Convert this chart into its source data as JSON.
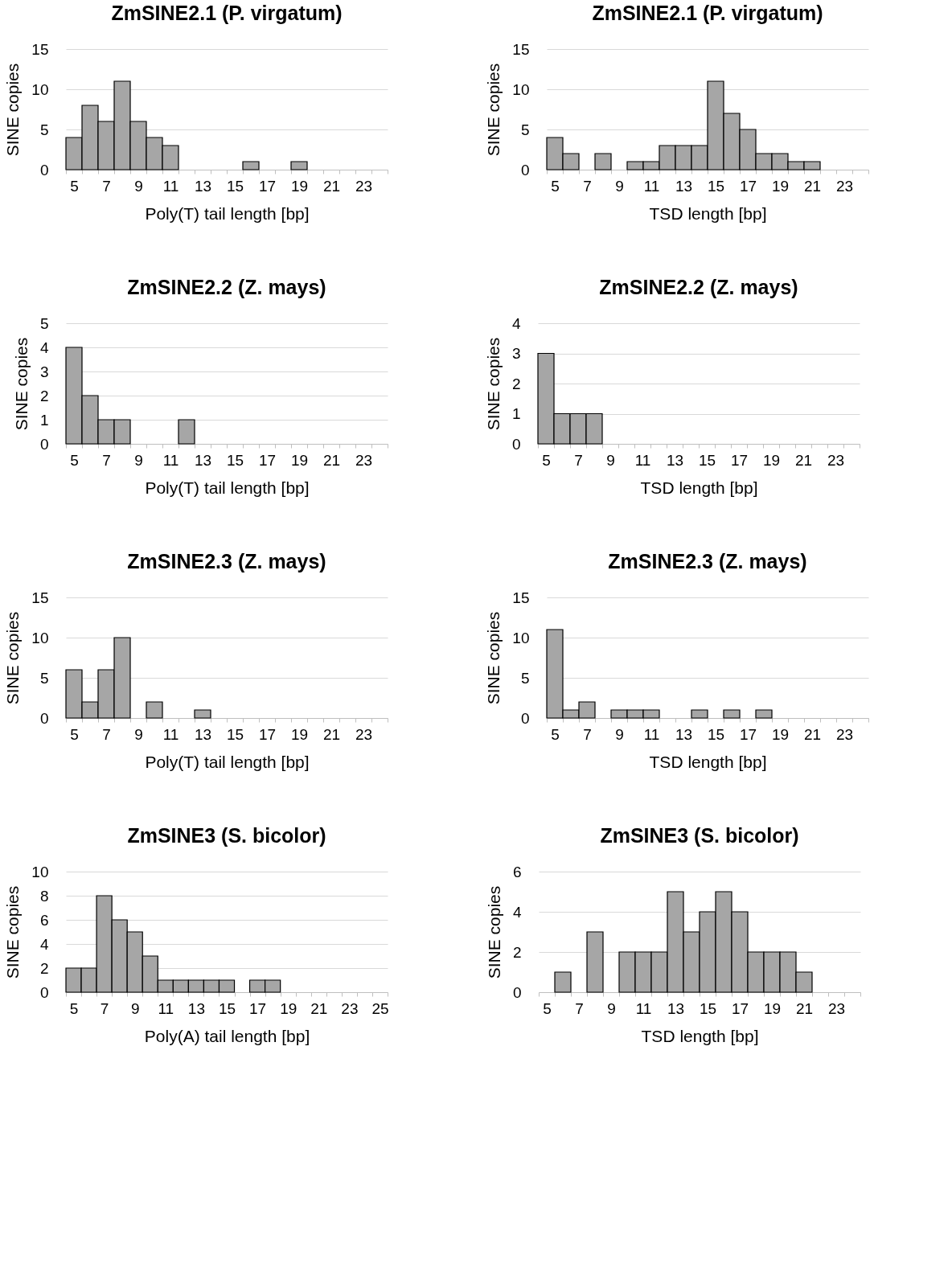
{
  "chart_data": [
    {
      "type": "bar",
      "title": "ZmSINE2.1 (P. virgatum)",
      "xlabel": "Poly(T) tail length [bp]",
      "ylabel": "SINE copies",
      "color": "#a6a6a6",
      "grid": "y",
      "ylim": [
        0,
        15
      ],
      "yticks": [
        0,
        5,
        10,
        15
      ],
      "categories": [
        "5",
        null,
        "7",
        null,
        "9",
        null,
        "11",
        null,
        "13",
        null,
        "15",
        null,
        "17",
        null,
        "19",
        null,
        "21",
        null,
        "23",
        null
      ],
      "values": [
        4,
        8,
        6,
        11,
        6,
        4,
        3,
        0,
        0,
        0,
        0,
        1,
        0,
        0,
        1,
        0,
        0,
        0,
        0,
        0
      ]
    },
    {
      "type": "bar",
      "title": "ZmSINE2.1 (P. virgatum)",
      "xlabel": "TSD length [bp]",
      "ylabel": "SINE copies",
      "color": "#a6a6a6",
      "grid": "y",
      "ylim": [
        0,
        15
      ],
      "yticks": [
        0,
        5,
        10,
        15
      ],
      "categories": [
        "5",
        null,
        "7",
        null,
        "9",
        null,
        "11",
        null,
        "13",
        null,
        "15",
        null,
        "17",
        null,
        "19",
        null,
        "21",
        null,
        "23",
        null
      ],
      "values": [
        4,
        2,
        0,
        2,
        0,
        1,
        1,
        3,
        3,
        3,
        11,
        7,
        5,
        2,
        2,
        1,
        1,
        0,
        0,
        0
      ]
    },
    {
      "type": "bar",
      "title": "ZmSINE2.2 (Z. mays)",
      "xlabel": "Poly(T) tail length [bp]",
      "ylabel": "SINE copies",
      "color": "#a6a6a6",
      "grid": "y",
      "ylim": [
        0,
        5
      ],
      "yticks": [
        0,
        1,
        2,
        3,
        4,
        5
      ],
      "categories": [
        "5",
        null,
        "7",
        null,
        "9",
        null,
        "11",
        null,
        "13",
        null,
        "15",
        null,
        "17",
        null,
        "19",
        null,
        "21",
        null,
        "23",
        null
      ],
      "values": [
        4,
        2,
        1,
        1,
        0,
        0,
        0,
        1,
        0,
        0,
        0,
        0,
        0,
        0,
        0,
        0,
        0,
        0,
        0,
        0
      ]
    },
    {
      "type": "bar",
      "title": "ZmSINE2.2 (Z. mays)",
      "xlabel": "TSD length [bp]",
      "ylabel": "SINE copies",
      "color": "#a6a6a6",
      "grid": "y",
      "ylim": [
        0,
        4
      ],
      "yticks": [
        0,
        1,
        2,
        3,
        4
      ],
      "categories": [
        "5",
        null,
        "7",
        null,
        "9",
        null,
        "11",
        null,
        "13",
        null,
        "15",
        null,
        "17",
        null,
        "19",
        null,
        "21",
        null,
        "23",
        null
      ],
      "values": [
        3,
        1,
        1,
        1,
        0,
        0,
        0,
        0,
        0,
        0,
        0,
        0,
        0,
        0,
        0,
        0,
        0,
        0,
        0,
        0
      ]
    },
    {
      "type": "bar",
      "title": "ZmSINE2.3 (Z. mays)",
      "xlabel": "Poly(T) tail length [bp]",
      "ylabel": "SINE copies",
      "color": "#a6a6a6",
      "grid": "y",
      "ylim": [
        0,
        15
      ],
      "yticks": [
        0,
        5,
        10,
        15
      ],
      "categories": [
        "5",
        null,
        "7",
        null,
        "9",
        null,
        "11",
        null,
        "13",
        null,
        "15",
        null,
        "17",
        null,
        "19",
        null,
        "21",
        null,
        "23",
        null
      ],
      "values": [
        6,
        2,
        6,
        10,
        0,
        2,
        0,
        0,
        1,
        0,
        0,
        0,
        0,
        0,
        0,
        0,
        0,
        0,
        0,
        0
      ]
    },
    {
      "type": "bar",
      "title": "ZmSINE2.3 (Z. mays)",
      "xlabel": "TSD length [bp]",
      "ylabel": "SINE copies",
      "color": "#a6a6a6",
      "grid": "y",
      "ylim": [
        0,
        15
      ],
      "yticks": [
        0,
        5,
        10,
        15
      ],
      "categories": [
        "5",
        null,
        "7",
        null,
        "9",
        null,
        "11",
        null,
        "13",
        null,
        "15",
        null,
        "17",
        null,
        "19",
        null,
        "21",
        null,
        "23",
        null
      ],
      "values": [
        11,
        1,
        2,
        0,
        1,
        1,
        1,
        0,
        0,
        1,
        0,
        1,
        0,
        1,
        0,
        0,
        0,
        0,
        0,
        0
      ]
    },
    {
      "type": "bar",
      "title": "ZmSINE3 (S. bicolor)",
      "xlabel": "Poly(A) tail length [bp]",
      "ylabel": "SINE copies",
      "color": "#a6a6a6",
      "grid": "y",
      "ylim": [
        0,
        10
      ],
      "yticks": [
        0,
        2,
        4,
        6,
        8,
        10
      ],
      "categories": [
        "5",
        null,
        "7",
        null,
        "9",
        null,
        "11",
        null,
        "13",
        null,
        "15",
        null,
        "17",
        null,
        "19",
        null,
        "21",
        null,
        "23",
        null,
        "25"
      ],
      "values": [
        2,
        2,
        8,
        6,
        5,
        3,
        1,
        1,
        1,
        1,
        1,
        0,
        1,
        1,
        0,
        0,
        0,
        0,
        0,
        0,
        0
      ]
    },
    {
      "type": "bar",
      "title": "ZmSINE3 (S. bicolor)",
      "xlabel": "TSD length [bp]",
      "ylabel": "SINE copies",
      "color": "#a6a6a6",
      "grid": "y",
      "ylim": [
        0,
        6
      ],
      "yticks": [
        0,
        2,
        4,
        6
      ],
      "categories": [
        "5",
        null,
        "7",
        null,
        "9",
        null,
        "11",
        null,
        "13",
        null,
        "15",
        null,
        "17",
        null,
        "19",
        null,
        "21",
        null,
        "23",
        null
      ],
      "values": [
        0,
        1,
        0,
        3,
        0,
        2,
        2,
        2,
        5,
        3,
        4,
        5,
        4,
        2,
        2,
        2,
        1,
        0,
        0,
        0
      ]
    }
  ]
}
